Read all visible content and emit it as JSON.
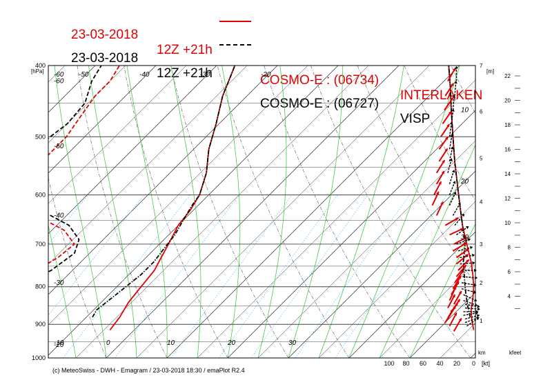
{
  "legend": [
    {
      "date": "23-03-2018",
      "run": "12Z +21h",
      "style": "solid",
      "model": "COSMO-E : (06734)",
      "station": "INTERLAKEN",
      "color": "#e00000"
    },
    {
      "date": "23-03-2018",
      "run": "12Z +21h",
      "style": "dash-dot",
      "model": "COSMO-E : (06727)",
      "station": "VISP",
      "color": "#000000"
    }
  ],
  "footer": "(c) MeteoSwiss - DWH - Emagram / 23-03-2018  18:30 / emaPlot R2.4",
  "colors": {
    "red": "#e00000",
    "black": "#000000",
    "dry_adiabat": "#555555",
    "moist_adiabat": "#44cc44",
    "mixing_ratio": "#66ccff",
    "grid": "#333333"
  },
  "chart_data": {
    "type": "emagram",
    "pressure_unit": "[hPa]",
    "pressure_ticks": [
      "400",
      "500",
      "600",
      "700",
      "800",
      "900",
      "1000"
    ],
    "isobars": [
      400,
      450,
      500,
      550,
      600,
      650,
      700,
      750,
      800,
      850,
      900,
      950,
      1000
    ],
    "ylim_hpa": [
      400,
      1000
    ],
    "temperature_labels": [
      {
        "text": "-60",
        "t": -60,
        "p": 400
      },
      {
        "text": "-50",
        "t": -50,
        "p": 400
      },
      {
        "text": "-40",
        "t": -40,
        "p": 400
      },
      {
        "text": "-30",
        "t": -30,
        "p": 400
      },
      {
        "text": "-20",
        "t": -20,
        "p": 400
      },
      {
        "text": "-60",
        "t": -60,
        "p": 420
      },
      {
        "text": "-50",
        "t": -50,
        "p": 515
      },
      {
        "text": "-40",
        "t": -40,
        "p": 640
      },
      {
        "text": "-30",
        "t": -30,
        "p": 790
      },
      {
        "text": "-20",
        "t": -20,
        "p": 960
      },
      {
        "text": "-10",
        "t": -10,
        "p": 1000
      },
      {
        "text": "0",
        "t": 0,
        "p": 1000
      },
      {
        "text": "10",
        "t": 10,
        "p": 1000
      },
      {
        "text": "20",
        "t": 20,
        "p": 1000
      },
      {
        "text": "30",
        "t": 30,
        "p": 1000
      }
    ],
    "dew_labels": [
      {
        "text": "10",
        "p": 460
      },
      {
        "text": "20",
        "p": 575
      },
      {
        "text": "30",
        "p": 685
      }
    ],
    "height_km_unit": "[m]",
    "height_km_ticks": [
      {
        "label": "7",
        "p": 400
      },
      {
        "label": "6",
        "p": 462
      },
      {
        "label": "5",
        "p": 535
      },
      {
        "label": "4",
        "p": 613
      },
      {
        "label": "3",
        "p": 700
      },
      {
        "label": "2",
        "p": 790
      },
      {
        "label": "1",
        "p": 890
      }
    ],
    "kfeet_ticks": [
      "22",
      "20",
      "18",
      "16",
      "14",
      "12",
      "10",
      "8",
      "6",
      "4"
    ],
    "wind_axis_ticks": [
      "100",
      "80",
      "60",
      "40",
      "20",
      "0"
    ],
    "wind_axis_units": "[kt]",
    "km_label": "km",
    "kfeet_label": "kfeet",
    "series": [
      {
        "station": "INTERLAKEN",
        "color": "#e00000",
        "style": "solid",
        "kind": "temperature",
        "points": [
          [
            916,
            -14
          ],
          [
            880,
            -14.5
          ],
          [
            840,
            -15.5
          ],
          [
            800,
            -16
          ],
          [
            760,
            -16.5
          ],
          [
            730,
            -17.5
          ],
          [
            700,
            -18.5
          ],
          [
            660,
            -20
          ],
          [
            630,
            -20.5
          ],
          [
            600,
            -21.5
          ],
          [
            560,
            -24
          ],
          [
            520,
            -27.5
          ],
          [
            480,
            -30.5
          ],
          [
            440,
            -34
          ],
          [
            400,
            -37
          ]
        ]
      },
      {
        "station": "INTERLAKEN",
        "color": "#e00000",
        "style": "dashed",
        "kind": "dewpoint",
        "points": [
          [
            916,
            -35
          ],
          [
            900,
            -40
          ],
          [
            880,
            -42
          ],
          [
            850,
            -41
          ],
          [
            820,
            -39.5
          ],
          [
            790,
            -38
          ],
          [
            760,
            -36
          ],
          [
            730,
            -34.5
          ],
          [
            700,
            -34
          ],
          [
            670,
            -38
          ],
          [
            640,
            -45
          ],
          [
            610,
            -53
          ],
          [
            590,
            -55
          ],
          [
            560,
            -54
          ],
          [
            530,
            -53
          ],
          [
            500,
            -53
          ],
          [
            470,
            -54
          ],
          [
            440,
            -55
          ],
          [
            420,
            -55
          ],
          [
            400,
            -56
          ]
        ]
      },
      {
        "station": "VISP",
        "color": "#000000",
        "style": "dash-dot",
        "kind": "temperature",
        "points": [
          [
            880,
            -19
          ],
          [
            860,
            -19.5
          ],
          [
            830,
            -19
          ],
          [
            800,
            -18.5
          ],
          [
            770,
            -18
          ],
          [
            740,
            -18
          ],
          [
            710,
            -18.5
          ],
          [
            680,
            -19
          ],
          [
            650,
            -20
          ],
          [
            620,
            -21
          ],
          [
            600,
            -21.5
          ],
          [
            560,
            -24
          ],
          [
            520,
            -27.5
          ],
          [
            480,
            -30.5
          ],
          [
            440,
            -34
          ],
          [
            400,
            -37
          ]
        ]
      },
      {
        "station": "VISP",
        "color": "#000000",
        "style": "dashed",
        "kind": "dewpoint",
        "points": [
          [
            880,
            -43
          ],
          [
            850,
            -40
          ],
          [
            820,
            -38
          ],
          [
            790,
            -35.5
          ],
          [
            760,
            -33.5
          ],
          [
            720,
            -32.5
          ],
          [
            690,
            -34
          ],
          [
            660,
            -38
          ],
          [
            630,
            -45
          ],
          [
            600,
            -53
          ],
          [
            570,
            -58
          ],
          [
            540,
            -58
          ],
          [
            510,
            -56
          ],
          [
            480,
            -55
          ],
          [
            450,
            -55.5
          ],
          [
            420,
            -58
          ],
          [
            400,
            -59
          ]
        ]
      }
    ],
    "profiles_right": [
      {
        "color": "#e00000",
        "style": "solid",
        "points": [
          [
            916,
            2
          ],
          [
            890,
            4
          ],
          [
            860,
            5
          ],
          [
            830,
            3
          ],
          [
            800,
            2
          ],
          [
            770,
            3
          ],
          [
            740,
            5
          ],
          [
            700,
            10
          ],
          [
            660,
            15
          ],
          [
            620,
            18
          ],
          [
            580,
            21
          ],
          [
            540,
            24
          ],
          [
            500,
            26
          ],
          [
            460,
            28
          ],
          [
            430,
            29
          ],
          [
            400,
            31
          ]
        ]
      },
      {
        "color": "#000000",
        "style": "dash-dot",
        "points": [
          [
            880,
            6
          ],
          [
            850,
            9
          ],
          [
            820,
            11
          ],
          [
            800,
            12
          ],
          [
            770,
            13
          ],
          [
            740,
            14
          ],
          [
            700,
            12
          ],
          [
            660,
            15
          ],
          [
            620,
            18
          ],
          [
            580,
            21
          ],
          [
            540,
            24
          ],
          [
            500,
            26
          ],
          [
            460,
            28
          ],
          [
            430,
            29
          ],
          [
            400,
            31
          ]
        ]
      }
    ],
    "wind_barbs": [
      {
        "station": "INTERLAKEN",
        "color": "#e00000",
        "barbs": [
          [
            920,
            30,
            25
          ],
          [
            905,
            28,
            30
          ],
          [
            895,
            30,
            35
          ],
          [
            885,
            31,
            32
          ],
          [
            875,
            33,
            30
          ],
          [
            865,
            35,
            28
          ],
          [
            855,
            28,
            32
          ],
          [
            845,
            30,
            25
          ],
          [
            835,
            25,
            30
          ],
          [
            820,
            30,
            28
          ],
          [
            805,
            32,
            26
          ],
          [
            790,
            35,
            24
          ],
          [
            775,
            40,
            22
          ],
          [
            760,
            45,
            20
          ],
          [
            745,
            50,
            22
          ],
          [
            730,
            55,
            22
          ],
          [
            715,
            60,
            26
          ],
          [
            700,
            62,
            25
          ],
          [
            680,
            65,
            30
          ],
          [
            660,
            60,
            35
          ],
          [
            640,
            25,
            45
          ],
          [
            620,
            25,
            50
          ],
          [
            600,
            28,
            48
          ],
          [
            580,
            30,
            45
          ],
          [
            560,
            32,
            45
          ],
          [
            540,
            33,
            42
          ],
          [
            520,
            35,
            42
          ],
          [
            500,
            34,
            40
          ],
          [
            480,
            35,
            38
          ],
          [
            460,
            35,
            36
          ],
          [
            440,
            33,
            35
          ],
          [
            420,
            30,
            32
          ]
        ]
      },
      {
        "station": "VISP",
        "color": "#000000",
        "barbs": [
          [
            905,
            55,
            10
          ],
          [
            895,
            70,
            12
          ],
          [
            885,
            75,
            12
          ],
          [
            875,
            80,
            14
          ],
          [
            865,
            90,
            14
          ],
          [
            855,
            95,
            12
          ],
          [
            845,
            100,
            12
          ],
          [
            835,
            110,
            14
          ],
          [
            820,
            115,
            14
          ],
          [
            805,
            105,
            16
          ],
          [
            790,
            100,
            16
          ],
          [
            775,
            95,
            15
          ],
          [
            760,
            90,
            16
          ],
          [
            745,
            85,
            18
          ],
          [
            730,
            80,
            18
          ],
          [
            715,
            75,
            20
          ],
          [
            700,
            70,
            22
          ],
          [
            680,
            55,
            22
          ],
          [
            660,
            40,
            24
          ],
          [
            640,
            30,
            26
          ],
          [
            620,
            25,
            30
          ],
          [
            600,
            22,
            30
          ],
          [
            580,
            18,
            30
          ],
          [
            560,
            15,
            32
          ],
          [
            540,
            12,
            30
          ],
          [
            520,
            10,
            30
          ],
          [
            500,
            8,
            30
          ],
          [
            480,
            8,
            28
          ],
          [
            460,
            5,
            26
          ],
          [
            440,
            5,
            24
          ],
          [
            420,
            0,
            22
          ]
        ]
      }
    ]
  }
}
